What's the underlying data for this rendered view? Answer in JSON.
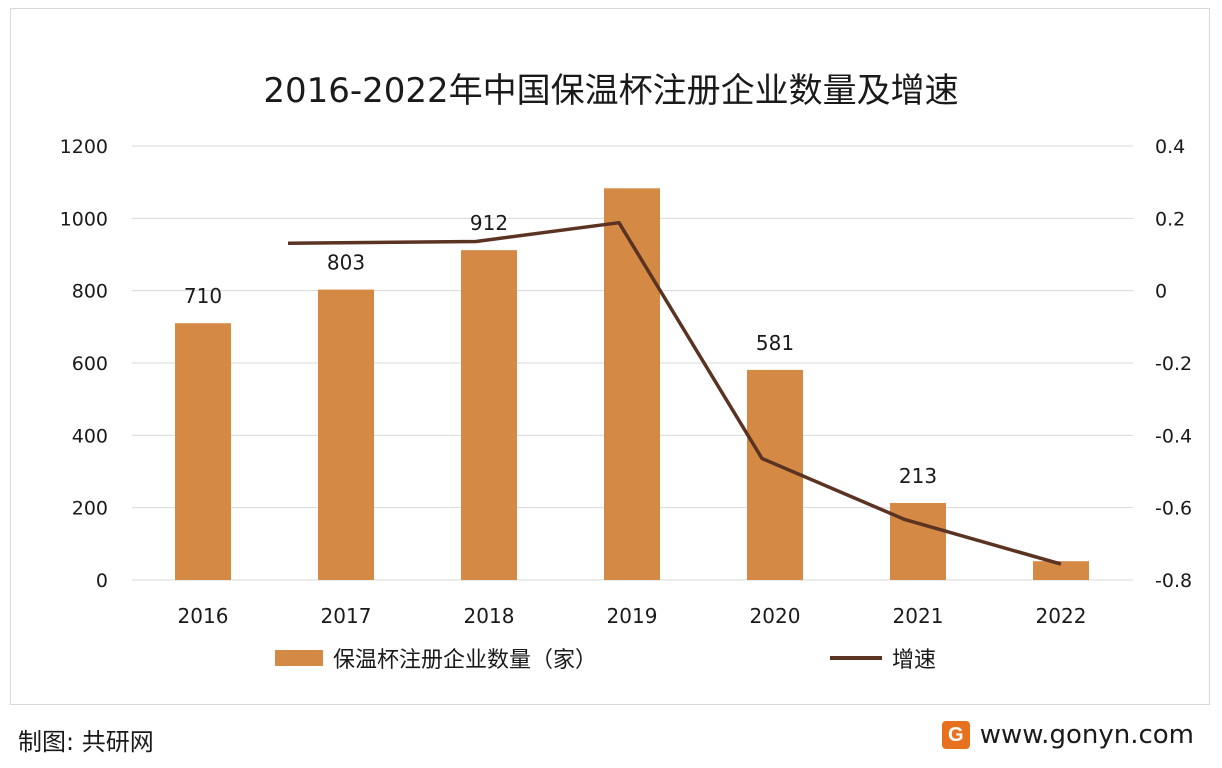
{
  "title": "2016-2022年中国保温杯注册企业数量及增速",
  "source": "制图: 共研网",
  "brand": {
    "logo_text": "G",
    "url": "www.gonyn.com"
  },
  "colors": {
    "bar": "#d48a44",
    "line": "#5a3323",
    "grid": "#d9d9d9",
    "text": "#1a1a1a"
  },
  "chart_data": {
    "type": "bar",
    "categories": [
      "2016",
      "2017",
      "2018",
      "2019",
      "2020",
      "2021",
      "2022"
    ],
    "series": [
      {
        "name": "保温杯注册企业数量（家）",
        "type": "bar",
        "axis": "left",
        "values": [
          710,
          803,
          912,
          1083,
          581,
          213,
          52
        ],
        "labels": [
          "710",
          "803",
          "912",
          "",
          "581",
          "213",
          ""
        ]
      },
      {
        "name": "增速",
        "type": "line",
        "axis": "right",
        "values": [
          null,
          0.131,
          0.136,
          0.188,
          -0.464,
          -0.633,
          -0.756
        ]
      }
    ],
    "y_left": {
      "min": 0,
      "max": 1200,
      "ticks": [
        "0",
        "200",
        "400",
        "600",
        "800",
        "1000",
        "1200"
      ]
    },
    "y_right": {
      "min": -0.8,
      "max": 0.4,
      "ticks": [
        "-0.8",
        "-0.6",
        "-0.4",
        "-0.2",
        "0",
        "0.2",
        "0.4"
      ]
    },
    "grid": true,
    "legend_position": "bottom"
  }
}
